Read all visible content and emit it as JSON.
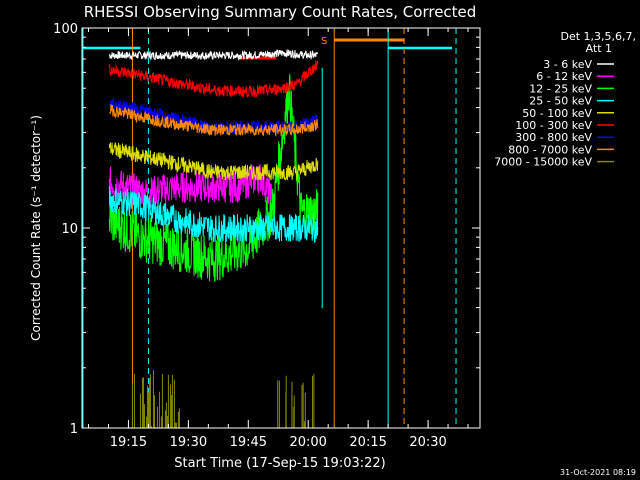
{
  "chart_data": {
    "type": "line",
    "title": "RHESSI Observing Summary Count Rates, Corrected",
    "xlabel": "Start Time (17-Sep-15 19:03:22)",
    "ylabel": "Corrected Count Rate (s⁻¹ detector⁻¹)",
    "y_scale": "log",
    "ylim": [
      1,
      100
    ],
    "xlim_minutes": [
      19.06,
      20.72
    ],
    "x_ticks": [
      "19:15",
      "19:30",
      "19:45",
      "20:00",
      "20:15",
      "20:30"
    ],
    "y_ticks": [
      "1",
      "10",
      "100"
    ],
    "legend_header": [
      "Det 1,3,5,6,7,",
      "Att 1"
    ],
    "legend_position": "right",
    "flag_label": "S",
    "timestamp": "31-Oct-2021 08:19",
    "series": [
      {
        "name": "3 - 6 keV",
        "color": "#ffffff",
        "x": [
          19.17,
          19.3,
          19.45,
          19.6,
          19.75,
          19.9,
          20.0,
          20.04
        ],
        "y": [
          73,
          73,
          73,
          73,
          73,
          75,
          73,
          73
        ]
      },
      {
        "name": "6 - 12 keV",
        "color": "#ff00ff",
        "x": [
          19.17,
          19.25,
          19.32,
          19.45,
          19.6,
          19.7,
          19.8,
          19.85
        ],
        "y": [
          17,
          16,
          15,
          16,
          16,
          16,
          18,
          14
        ]
      },
      {
        "name": "12 - 25 keV",
        "color": "#00ff00",
        "x": [
          19.17,
          19.3,
          19.45,
          19.6,
          19.75,
          19.85,
          19.92,
          19.97,
          20.04
        ],
        "y": [
          11,
          9,
          8,
          7,
          8,
          12,
          50,
          12,
          12
        ]
      },
      {
        "name": "25 - 50 keV",
        "color": "#00ffff",
        "x": [
          19.17,
          19.3,
          19.45,
          19.6,
          19.75,
          19.85,
          19.95,
          20.04
        ],
        "y": [
          14,
          13,
          11,
          10,
          10,
          10,
          10,
          10
        ]
      },
      {
        "name": "50 - 100 keV",
        "color": "#dddd00",
        "x": [
          19.17,
          19.3,
          19.45,
          19.6,
          19.75,
          19.85,
          19.95,
          20.04
        ],
        "y": [
          25,
          23,
          21,
          19,
          19,
          19,
          19,
          21
        ]
      },
      {
        "name": "100 - 300 keV",
        "color": "#ff0000",
        "x": [
          19.17,
          19.3,
          19.45,
          19.6,
          19.75,
          19.85,
          19.95,
          20.04
        ],
        "y": [
          62,
          58,
          53,
          49,
          48,
          49,
          52,
          66
        ]
      },
      {
        "name": "300 - 800 keV",
        "color": "#0000ff",
        "x": [
          19.17,
          19.3,
          19.45,
          19.6,
          19.75,
          19.85,
          19.95,
          20.04
        ],
        "y": [
          42,
          39,
          35,
          32,
          32,
          32,
          32,
          35
        ]
      },
      {
        "name": "800 - 7000 keV",
        "color": "#ff8800",
        "x": [
          19.17,
          19.3,
          19.45,
          19.6,
          19.75,
          19.85,
          19.95,
          20.04
        ],
        "y": [
          39,
          36,
          33,
          31,
          31,
          31,
          31,
          33
        ]
      },
      {
        "name": "7000 - 15000 keV",
        "color": "#888800",
        "x": [
          19.17,
          19.3,
          19.45,
          19.6,
          19.75,
          19.85,
          19.95,
          20.04
        ],
        "y": [
          1,
          1,
          1,
          1,
          1,
          1,
          1,
          1
        ]
      }
    ]
  }
}
